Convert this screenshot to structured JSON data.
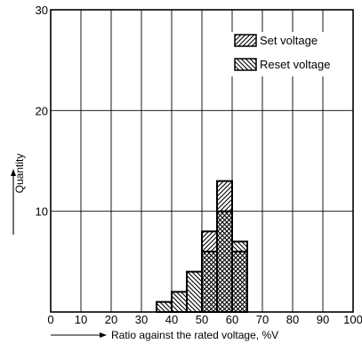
{
  "chart_data": {
    "type": "bar",
    "xlabel": "Ratio against the rated voltage, %V",
    "ylabel": "Quantity",
    "xlim": [
      0,
      100
    ],
    "ylim": [
      0,
      30
    ],
    "x_ticks": [
      0,
      10,
      20,
      30,
      40,
      50,
      60,
      70,
      80,
      90,
      100
    ],
    "y_ticks": [
      10,
      20,
      30
    ],
    "bin_width": 5,
    "grid": true,
    "legend_position": "top-right",
    "series": [
      {
        "name": "Set voltage",
        "pattern": "hatch-forward",
        "bins": [
          {
            "x0": 50,
            "x1": 55,
            "count": 8
          },
          {
            "x0": 55,
            "x1": 60,
            "count": 13
          },
          {
            "x0": 60,
            "x1": 65,
            "count": 6
          }
        ]
      },
      {
        "name": "Reset voltage",
        "pattern": "hatch-back",
        "bins": [
          {
            "x0": 35,
            "x1": 40,
            "count": 1
          },
          {
            "x0": 40,
            "x1": 45,
            "count": 2
          },
          {
            "x0": 45,
            "x1": 50,
            "count": 4
          },
          {
            "x0": 50,
            "x1": 55,
            "count": 6
          },
          {
            "x0": 55,
            "x1": 60,
            "count": 10
          },
          {
            "x0": 60,
            "x1": 65,
            "count": 7
          }
        ]
      }
    ]
  }
}
